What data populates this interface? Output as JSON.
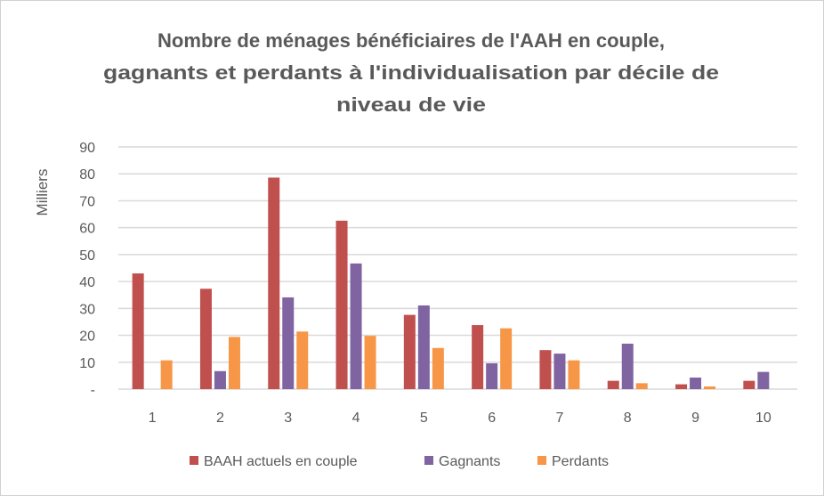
{
  "chart_data": {
    "type": "bar",
    "title_lines": [
      "Nombre de ménages bénéficiaires de l'AAH en couple,",
      "gagnants et perdants à l'individualisation  par décile de",
      "niveau de vie"
    ],
    "xlabel": "",
    "ylabel": "Milliers",
    "ylim": [
      0,
      90
    ],
    "yticks": [
      "-",
      "10",
      "20",
      "30",
      "40",
      "50",
      "60",
      "70",
      "80",
      "90"
    ],
    "grid": true,
    "legend_position": "bottom",
    "categories": [
      "1",
      "2",
      "3",
      "4",
      "5",
      "6",
      "7",
      "8",
      "9",
      "10"
    ],
    "series": [
      {
        "name": "BAAH actuels en couple",
        "color": "#C0504D",
        "values": [
          43.0,
          37.3,
          78.6,
          62.6,
          27.6,
          23.8,
          14.5,
          3.1,
          1.8,
          3.1
        ]
      },
      {
        "name": "Gagnants",
        "color": "#8064A2",
        "values": [
          0,
          6.7,
          34.1,
          46.7,
          31.1,
          9.6,
          13.2,
          16.9,
          4.3,
          6.4
        ]
      },
      {
        "name": "Perdants",
        "color": "#F79646",
        "values": [
          10.7,
          19.4,
          21.4,
          19.8,
          15.3,
          22.6,
          10.7,
          2.2,
          1.0,
          0
        ]
      }
    ]
  }
}
